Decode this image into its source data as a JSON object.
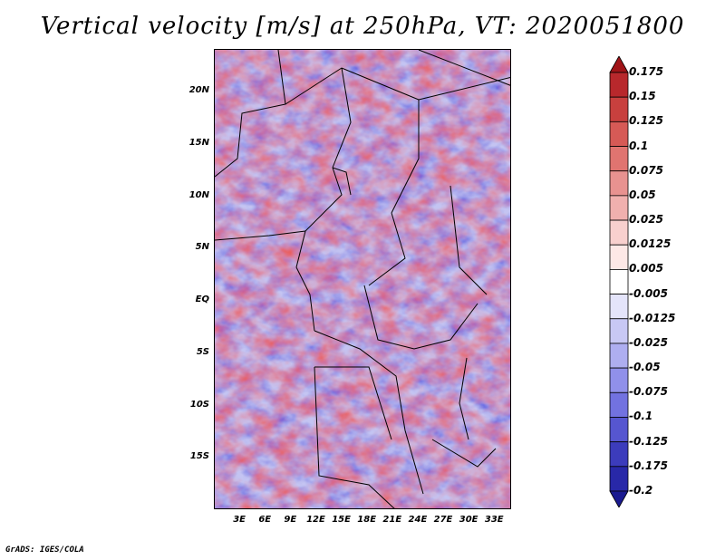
{
  "title": "Vertical velocity [m/s] at 250hPa, VT: 2020051800",
  "credit": "GrADS: IGES/COLA",
  "map": {
    "lon_range": [
      0,
      35
    ],
    "lat_range": [
      -20,
      24
    ],
    "y_ticks": [
      "20N",
      "15N",
      "10N",
      "5N",
      "EQ",
      "5S",
      "10S",
      "15S"
    ],
    "y_tick_lats": [
      20,
      15,
      10,
      5,
      0,
      -5,
      -10,
      -15
    ],
    "x_ticks": [
      "3E",
      "6E",
      "9E",
      "12E",
      "15E",
      "18E",
      "21E",
      "24E",
      "27E",
      "30E",
      "33E"
    ],
    "x_tick_lons": [
      3,
      6,
      9,
      12,
      15,
      18,
      21,
      24,
      27,
      30,
      33
    ]
  },
  "colorbar": {
    "labels": [
      "0.175",
      "0.15",
      "0.125",
      "0.1",
      "0.075",
      "0.05",
      "0.025",
      "0.0125",
      "0.005",
      "-0.005",
      "-0.0125",
      "-0.025",
      "-0.05",
      "-0.075",
      "-0.1",
      "-0.125",
      "-0.175",
      "-0.2"
    ],
    "colors": [
      "#a01418",
      "#b8282c",
      "#c8403e",
      "#d65a56",
      "#e07470",
      "#e89290",
      "#f0b0ae",
      "#f8d0ce",
      "#fde8e6",
      "#ffffff",
      "#e4e4fa",
      "#c8c8f4",
      "#aeaef0",
      "#9090ea",
      "#7272e0",
      "#5656d0",
      "#3c3cbc",
      "#2828a8",
      "#1a1a90"
    ]
  }
}
